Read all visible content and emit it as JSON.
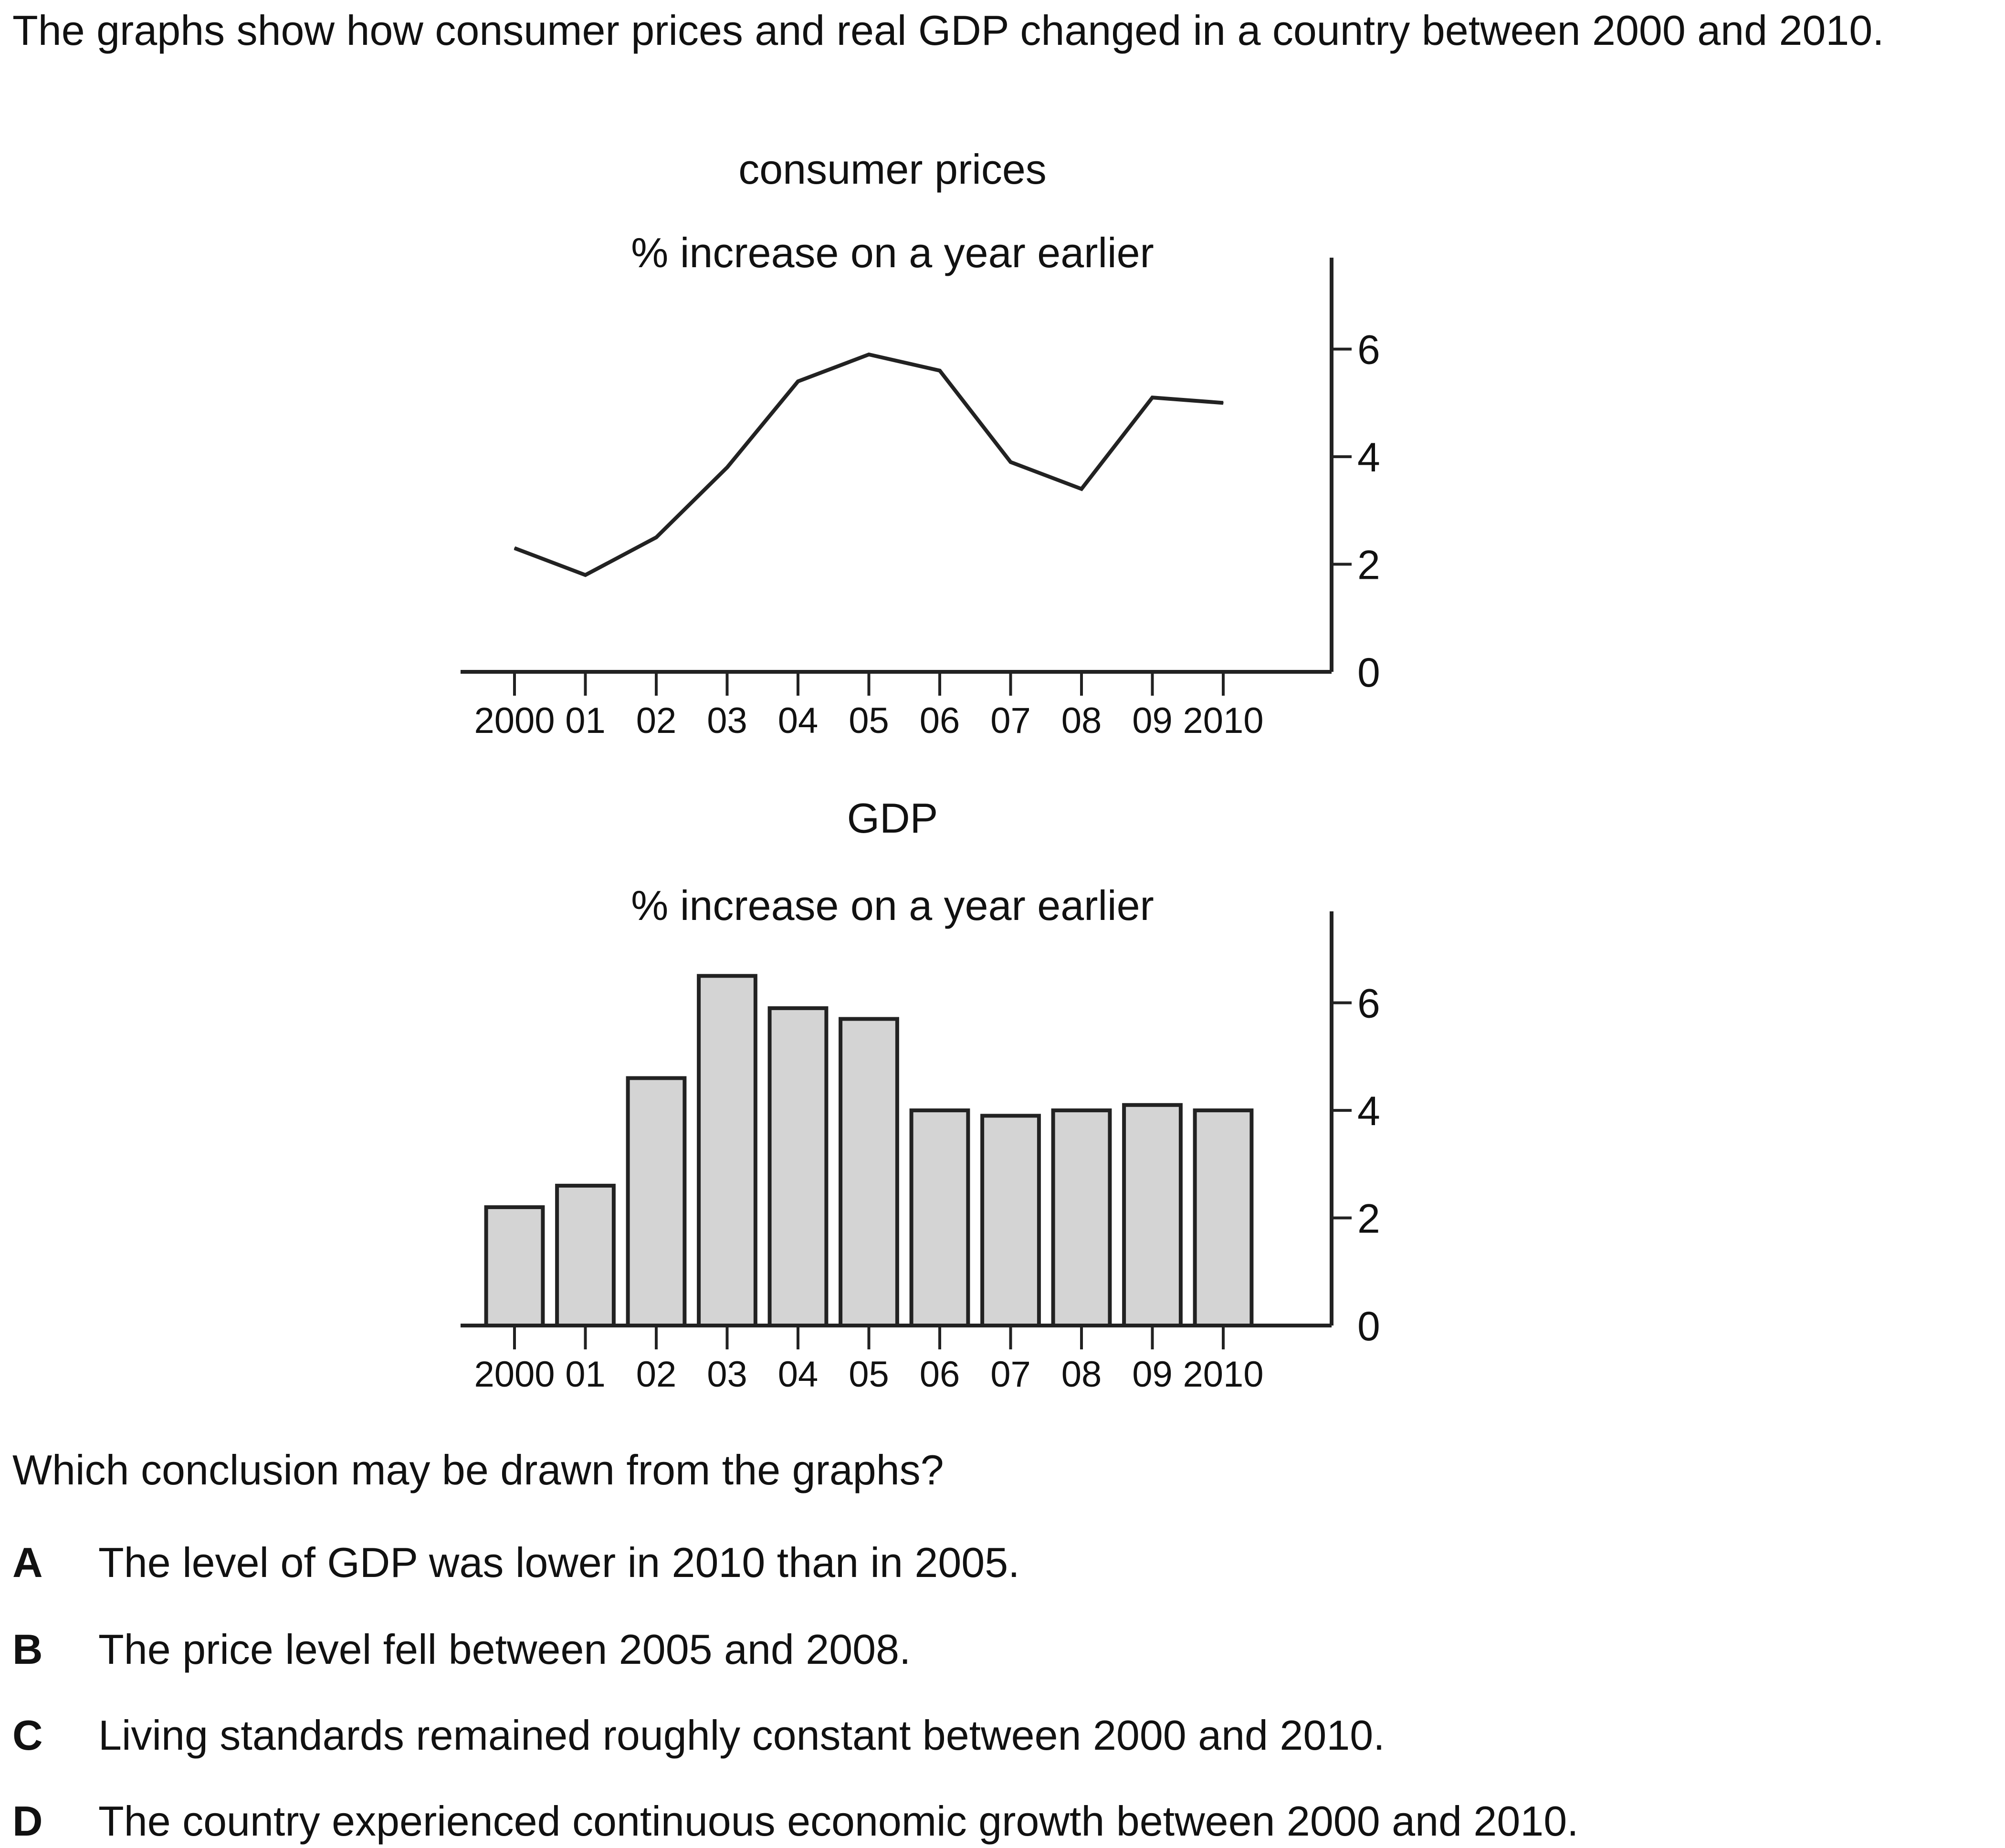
{
  "intro": "The graphs show how consumer prices and real GDP changed in a country between 2000 and 2010.",
  "chart_data": [
    {
      "type": "line",
      "title": "consumer prices",
      "subtitle": "% increase on a year earlier",
      "categories": [
        "2000",
        "01",
        "02",
        "03",
        "04",
        "05",
        "06",
        "07",
        "08",
        "09",
        "2010"
      ],
      "series": [
        {
          "values": [
            2.3,
            1.8,
            2.5,
            3.8,
            5.4,
            5.9,
            5.6,
            3.9,
            3.4,
            5.1,
            5.0
          ]
        }
      ],
      "yticks": [
        "0",
        "2",
        "4",
        "6"
      ],
      "ylim": [
        0,
        7.7
      ],
      "yaxis_position": "right",
      "grid": false
    },
    {
      "type": "bar",
      "title": "GDP",
      "subtitle": "% increase on a year earlier",
      "categories": [
        "2000",
        "01",
        "02",
        "03",
        "04",
        "05",
        "06",
        "07",
        "08",
        "09",
        "2010"
      ],
      "values": [
        2.2,
        2.6,
        4.6,
        6.5,
        5.9,
        5.7,
        4.0,
        3.9,
        4.0,
        4.1,
        4.0
      ],
      "yticks": [
        "0",
        "2",
        "4",
        "6"
      ],
      "ylim": [
        0,
        7.7
      ],
      "yaxis_position": "right",
      "grid": false,
      "bar_color": "#d4d4d4"
    }
  ],
  "question": "Which conclusion may be drawn from the graphs?",
  "options": [
    {
      "letter": "A",
      "text": "The level of GDP was lower in 2010 than in 2005."
    },
    {
      "letter": "B",
      "text": "The price level fell between 2005 and 2008."
    },
    {
      "letter": "C",
      "text": "Living standards remained roughly constant between 2000 and 2010."
    },
    {
      "letter": "D",
      "text": "The country experienced continuous economic growth between 2000 and 2010."
    }
  ]
}
